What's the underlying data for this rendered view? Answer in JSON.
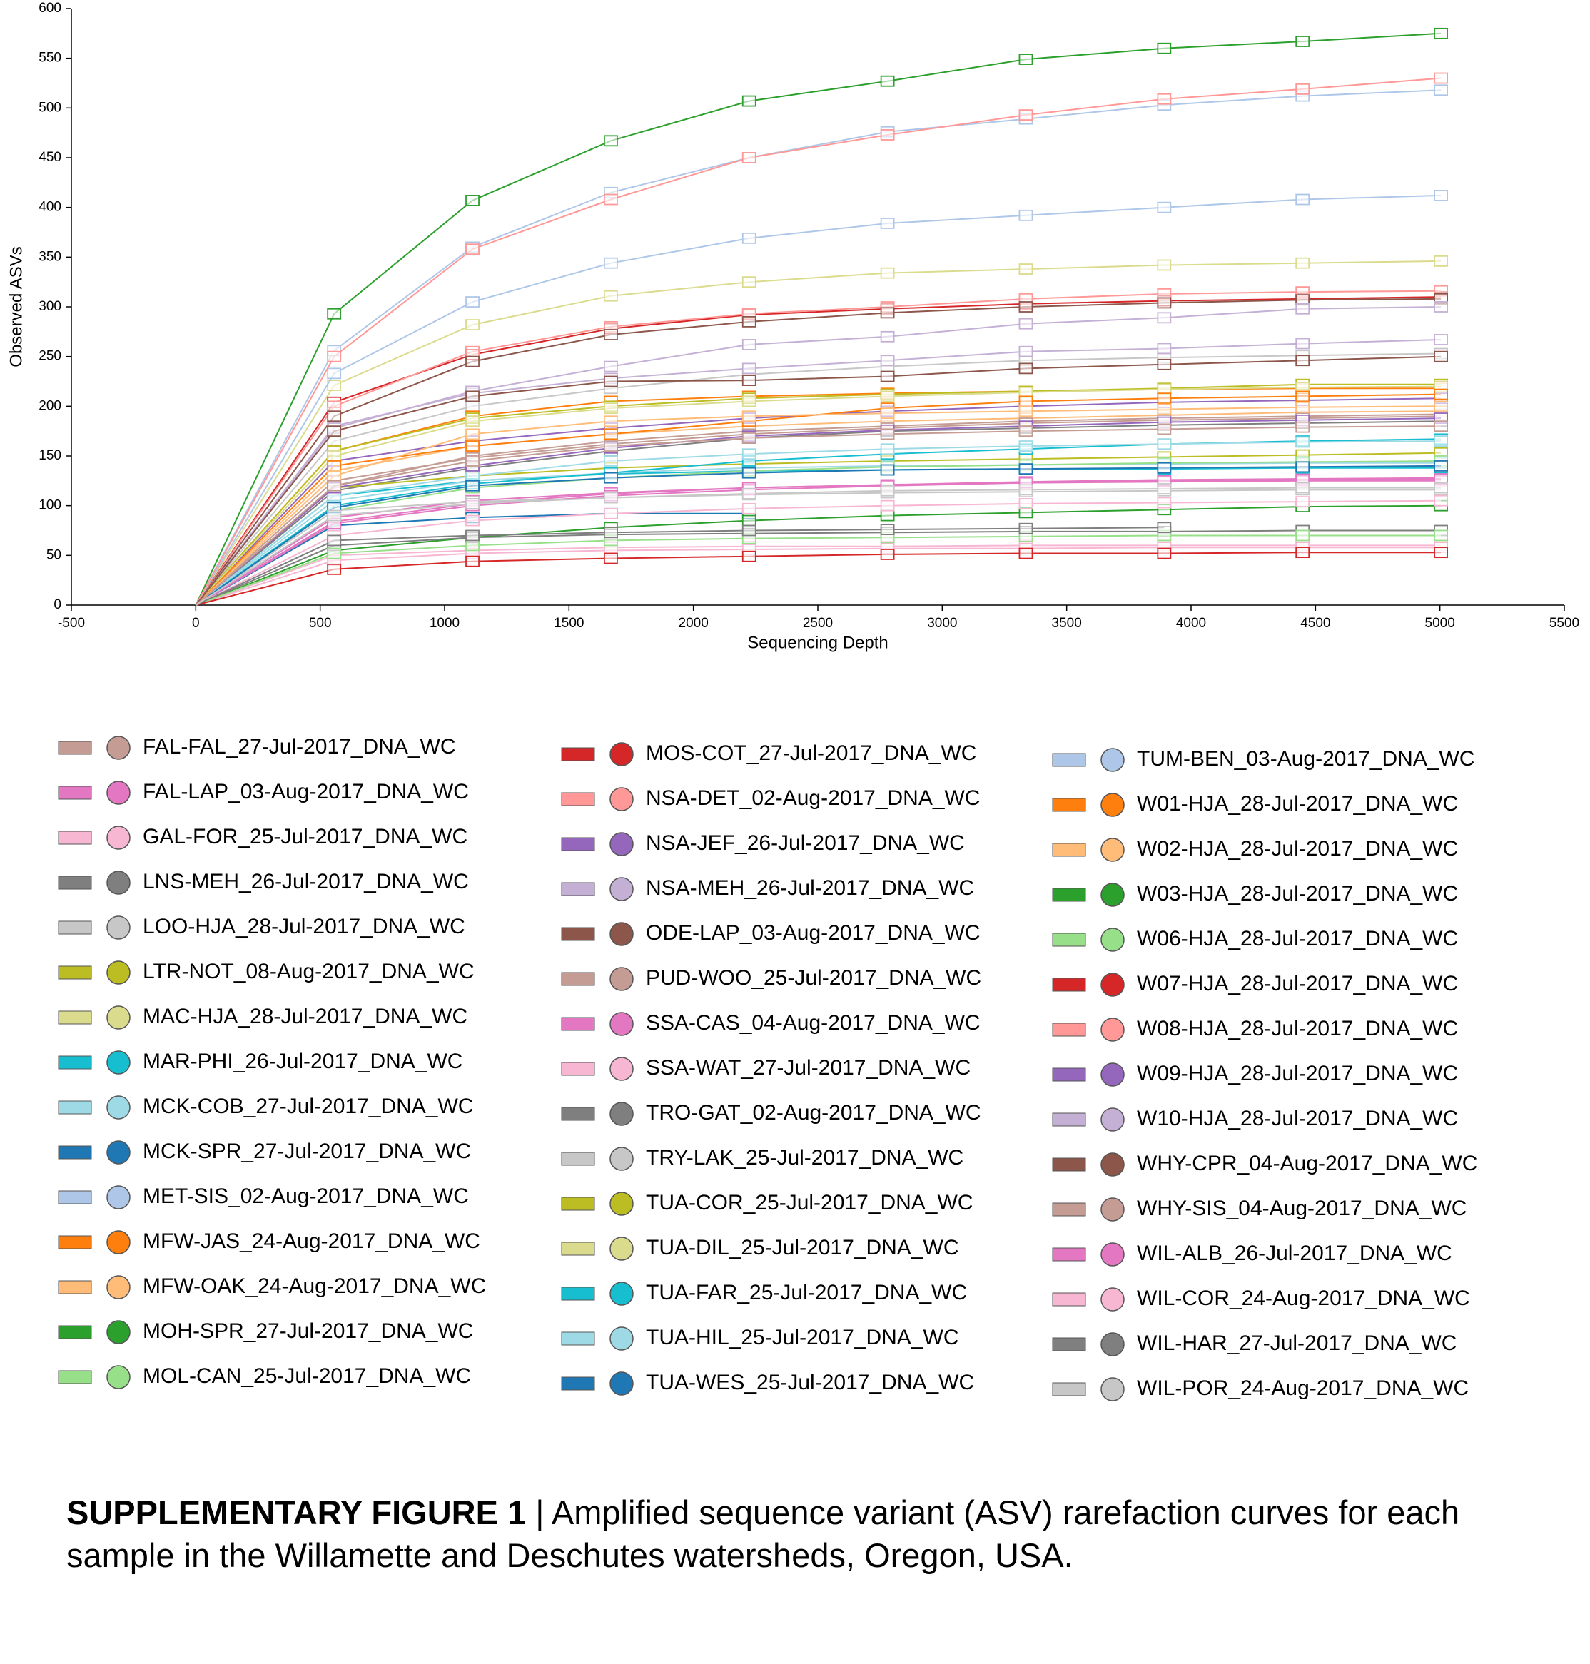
{
  "chart_data": {
    "type": "line",
    "x_label": "Sequencing Depth",
    "y_label": "Observed ASVs",
    "x": [
      0,
      556,
      1112,
      1668,
      2224,
      2780,
      3336,
      3892,
      4448,
      5004
    ],
    "xlim": [
      -500,
      5500
    ],
    "xticks": [
      -500,
      0,
      500,
      1000,
      1500,
      2000,
      2500,
      3000,
      3500,
      4000,
      4500,
      5000,
      5500
    ],
    "ylim": [
      0,
      600
    ],
    "yticks": [
      0,
      50,
      100,
      150,
      200,
      250,
      300,
      350,
      400,
      450,
      500,
      550,
      600
    ],
    "legend": "bottom",
    "series": [
      {
        "name": "FAL-FAL_27-Jul-2017_DNA_WC",
        "color": "#c49c94",
        "values": [
          0,
          120,
          150,
          165,
          175,
          180,
          185,
          188,
          190,
          192
        ]
      },
      {
        "name": "FAL-LAP_03-Aug-2017_DNA_WC",
        "color": "#e377c2",
        "values": [
          0,
          84,
          102,
          112,
          118,
          121,
          124,
          126,
          127,
          128
        ]
      },
      {
        "name": "GAL-FOR_25-Jul-2017_DNA_WC",
        "color": "#f7b6d2",
        "values": [
          0,
          50,
          55,
          58,
          59,
          59,
          60,
          60,
          60,
          60
        ]
      },
      {
        "name": "LNS-MEH_26-Jul-2017_DNA_WC",
        "color": "#7f7f7f",
        "values": [
          0,
          115,
          138,
          155,
          168,
          175,
          178,
          181,
          183,
          185
        ]
      },
      {
        "name": "LOO-HJA_28-Jul-2017_DNA_WC",
        "color": "#c7c7c7",
        "values": [
          0,
          165,
          200,
          218,
          232,
          240,
          246,
          249,
          251,
          253
        ]
      },
      {
        "name": "LTR-NOT_08-Aug-2017_DNA_WC",
        "color": "#bcbd22",
        "values": [
          0,
          118,
          130,
          138,
          142,
          145,
          147,
          149,
          151,
          153
        ]
      },
      {
        "name": "MAC-HJA_28-Jul-2017_DNA_WC",
        "color": "#dbdb8d",
        "values": [
          0,
          221,
          282,
          311,
          325,
          334,
          338,
          342,
          344,
          346
        ]
      },
      {
        "name": "MAR-PHI_26-Jul-2017_DNA_WC",
        "color": "#17becf",
        "values": [
          0,
          110,
          125,
          132,
          135,
          136,
          137,
          137,
          138,
          138
        ]
      },
      {
        "name": "MCK-COB_27-Jul-2017_DNA_WC",
        "color": "#9edae5",
        "values": [
          0,
          105,
          125,
          133,
          138,
          140,
          141,
          142,
          143,
          143
        ]
      },
      {
        "name": "MCK-SPR_27-Jul-2017_DNA_WC",
        "color": "#1f77b4",
        "values": [
          0,
          80,
          88,
          92,
          92,
          null,
          null,
          null,
          null,
          null
        ]
      },
      {
        "name": "MET-SIS_02-Aug-2017_DNA_WC",
        "color": "#aec7e8",
        "values": [
          0,
          256,
          360,
          415,
          450,
          476,
          489,
          503,
          512,
          518
        ]
      },
      {
        "name": "MFW-JAS_24-Aug-2017_DNA_WC",
        "color": "#ff7f0e",
        "values": [
          0,
          155,
          190,
          205,
          210,
          213,
          215,
          217,
          218,
          218
        ]
      },
      {
        "name": "MFW-OAK_24-Aug-2017_DNA_WC",
        "color": "#ffbb78",
        "values": [
          0,
          135,
          160,
          172,
          180,
          185,
          188,
          191,
          194,
          195
        ]
      },
      {
        "name": "MOH-SPR_27-Jul-2017_DNA_WC",
        "color": "#2ca02c",
        "values": [
          0,
          55,
          68,
          78,
          85,
          90,
          93,
          96,
          99,
          100
        ]
      },
      {
        "name": "MOL-CAN_25-Jul-2017_DNA_WC",
        "color": "#98df8a",
        "values": [
          0,
          95,
          118,
          128,
          135,
          139,
          141,
          143,
          144,
          145
        ]
      },
      {
        "name": "MOS-COT_27-Jul-2017_DNA_WC",
        "color": "#d62728",
        "values": [
          0,
          204,
          252,
          278,
          292,
          298,
          303,
          306,
          308,
          310
        ]
      },
      {
        "name": "NSA-DET_02-Aug-2017_DNA_WC",
        "color": "#ff9896",
        "values": [
          0,
          200,
          255,
          280,
          293,
          300,
          308,
          313,
          315,
          316
        ]
      },
      {
        "name": "NSA-JEF_26-Jul-2017_DNA_WC",
        "color": "#9467bd",
        "values": [
          0,
          145,
          165,
          178,
          188,
          195,
          200,
          204,
          206,
          208
        ]
      },
      {
        "name": "NSA-MEH_26-Jul-2017_DNA_WC",
        "color": "#c5b0d5",
        "values": [
          0,
          180,
          213,
          228,
          238,
          246,
          255,
          258,
          263,
          267
        ]
      },
      {
        "name": "ODE-LAP_03-Aug-2017_DNA_WC",
        "color": "#8c564b",
        "values": [
          0,
          190,
          245,
          272,
          285,
          294,
          300,
          304,
          307,
          308
        ]
      },
      {
        "name": "PUD-WOO_25-Jul-2017_DNA_WC",
        "color": "#c49c94",
        "values": [
          0,
          125,
          148,
          162,
          172,
          178,
          183,
          186,
          188,
          190
        ]
      },
      {
        "name": "SSA-CAS_04-Aug-2017_DNA_WC",
        "color": "#e377c2",
        "values": [
          0,
          88,
          105,
          113,
          118,
          121,
          123,
          124,
          125,
          125
        ]
      },
      {
        "name": "SSA-WAT_27-Jul-2017_DNA_WC",
        "color": "#f7b6d2",
        "values": [
          0,
          45,
          52,
          55,
          56,
          57,
          57,
          58,
          58,
          58
        ]
      },
      {
        "name": "TRO-GAT_02-Aug-2017_DNA_WC",
        "color": "#7f7f7f",
        "values": [
          0,
          60,
          68,
          71,
          72,
          73,
          74,
          74,
          75,
          75
        ]
      },
      {
        "name": "TRY-LAK_25-Jul-2017_DNA_WC",
        "color": "#c7c7c7",
        "values": [
          0,
          95,
          104,
          108,
          111,
          113,
          114,
          115,
          116,
          116
        ]
      },
      {
        "name": "TUA-COR_25-Jul-2017_DNA_WC",
        "color": "#bcbd22",
        "values": [
          0,
          155,
          188,
          200,
          208,
          212,
          215,
          218,
          222,
          222
        ]
      },
      {
        "name": "TUA-DIL_25-Jul-2017_DNA_WC",
        "color": "#dbdb8d",
        "values": [
          0,
          150,
          185,
          198,
          205,
          210,
          214,
          217,
          219,
          220
        ]
      },
      {
        "name": "TUA-FAR_25-Jul-2017_DNA_WC",
        "color": "#17becf",
        "values": [
          0,
          100,
          122,
          133,
          145,
          152,
          157,
          162,
          165,
          167
        ]
      },
      {
        "name": "TUA-HIL_25-Jul-2017_DNA_WC",
        "color": "#9edae5",
        "values": [
          0,
          110,
          130,
          145,
          152,
          157,
          160,
          162,
          164,
          165
        ]
      },
      {
        "name": "TUA-WES_25-Jul-2017_DNA_WC",
        "color": "#1f77b4",
        "values": [
          0,
          98,
          120,
          128,
          133,
          136,
          137,
          138,
          139,
          140
        ]
      },
      {
        "name": "TUM-BEN_03-Aug-2017_DNA_WC",
        "color": "#aec7e8",
        "values": [
          0,
          233,
          305,
          344,
          369,
          384,
          392,
          400,
          408,
          412
        ]
      },
      {
        "name": "W01-HJA_28-Jul-2017_DNA_WC",
        "color": "#ff7f0e",
        "values": [
          0,
          140,
          160,
          172,
          185,
          198,
          205,
          208,
          210,
          212
        ]
      },
      {
        "name": "W02-HJA_28-Jul-2017_DNA_WC",
        "color": "#ffbb78",
        "values": [
          0,
          130,
          172,
          185,
          190,
          193,
          195,
          197,
          199,
          200
        ]
      },
      {
        "name": "W03-HJA_28-Jul-2017_DNA_WC",
        "color": "#2ca02c",
        "values": [
          0,
          293,
          407,
          467,
          507,
          527,
          549,
          560,
          567,
          575
        ]
      },
      {
        "name": "W06-HJA_28-Jul-2017_DNA_WC",
        "color": "#98df8a",
        "values": [
          0,
          52,
          60,
          65,
          67,
          68,
          69,
          70,
          70,
          70
        ]
      },
      {
        "name": "W07-HJA_28-Jul-2017_DNA_WC",
        "color": "#d62728",
        "values": [
          0,
          36,
          44,
          47,
          49,
          51,
          52,
          52,
          53,
          53
        ]
      },
      {
        "name": "W08-HJA_28-Jul-2017_DNA_WC",
        "color": "#ff9896",
        "values": [
          0,
          250,
          358,
          408,
          450,
          473,
          493,
          509,
          519,
          530
        ]
      },
      {
        "name": "W09-HJA_28-Jul-2017_DNA_WC",
        "color": "#9467bd",
        "values": [
          0,
          118,
          140,
          158,
          170,
          176,
          180,
          184,
          186,
          188
        ]
      },
      {
        "name": "W10-HJA_28-Jul-2017_DNA_WC",
        "color": "#c5b0d5",
        "values": [
          0,
          178,
          215,
          240,
          262,
          270,
          283,
          289,
          298,
          300
        ]
      },
      {
        "name": "WHY-CPR_04-Aug-2017_DNA_WC",
        "color": "#8c564b",
        "values": [
          0,
          175,
          210,
          225,
          226,
          230,
          238,
          242,
          246,
          250
        ]
      },
      {
        "name": "WHY-SIS_04-Aug-2017_DNA_WC",
        "color": "#c49c94",
        "values": [
          0,
          120,
          145,
          160,
          168,
          172,
          175,
          177,
          179,
          180
        ]
      },
      {
        "name": "WIL-ALB_26-Jul-2017_DNA_WC",
        "color": "#e377c2",
        "values": [
          0,
          82,
          100,
          110,
          116,
          120,
          123,
          125,
          126,
          127
        ]
      },
      {
        "name": "WIL-COR_24-Aug-2017_DNA_WC",
        "color": "#f7b6d2",
        "values": [
          0,
          70,
          85,
          92,
          97,
          100,
          102,
          103,
          104,
          105
        ]
      },
      {
        "name": "WIL-HAR_27-Jul-2017_DNA_WC",
        "color": "#7f7f7f",
        "values": [
          0,
          65,
          70,
          73,
          75,
          76,
          77,
          78,
          null,
          null
        ]
      },
      {
        "name": "WIL-POR_24-Aug-2017_DNA_WC",
        "color": "#c7c7c7",
        "values": [
          0,
          90,
          102,
          108,
          112,
          115,
          116,
          117,
          118,
          118
        ]
      }
    ]
  },
  "caption": {
    "label": "SUPPLEMENTARY FIGURE 1",
    "text": " | Amplified sequence variant (ASV) rarefaction curves for each sample in the Willamette and Deschutes watersheds, Oregon, USA."
  }
}
